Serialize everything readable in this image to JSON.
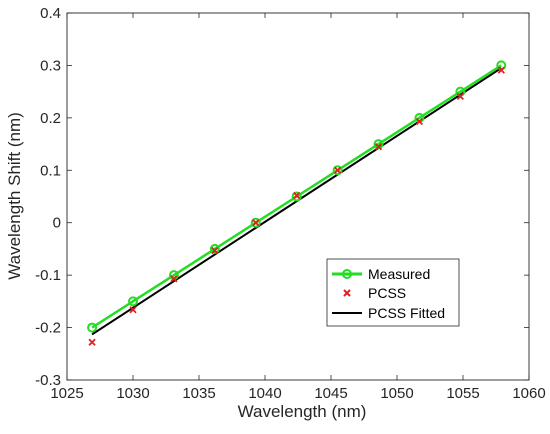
{
  "chart_data": {
    "type": "line",
    "xlabel": "Wavelength (nm)",
    "ylabel": "Wavelength Shift (nm)",
    "xlim": [
      1025,
      1060
    ],
    "ylim": [
      -0.3,
      0.4
    ],
    "xticks": [
      1025,
      1030,
      1035,
      1040,
      1045,
      1050,
      1055,
      1060
    ],
    "yticks": [
      -0.3,
      -0.2,
      -0.1,
      0,
      0.1,
      0.2,
      0.3,
      0.4
    ],
    "xtick_labels": [
      "1025",
      "1030",
      "1035",
      "1040",
      "1045",
      "1050",
      "1055",
      "1060"
    ],
    "ytick_labels": [
      "-0.3",
      "-0.2",
      "-0.1",
      "0",
      "0.1",
      "0.2",
      "0.3",
      "0.4"
    ],
    "grid": false,
    "legend_position": "lower-right",
    "series": [
      {
        "name": "Measured",
        "style": "line-circle-markers",
        "color": "#22dd22",
        "x": [
          1026.9,
          1030.0,
          1033.1,
          1036.2,
          1039.3,
          1042.4,
          1045.5,
          1048.6,
          1051.7,
          1054.8,
          1057.9
        ],
        "y": [
          -0.2,
          -0.15,
          -0.1,
          -0.05,
          0,
          0.05,
          0.1,
          0.15,
          0.2,
          0.25,
          0.3
        ]
      },
      {
        "name": "PCSS",
        "style": "x-markers",
        "color": "#e02020",
        "x": [
          1026.9,
          1030.0,
          1033.1,
          1036.2,
          1039.3,
          1042.4,
          1045.5,
          1048.6,
          1051.7,
          1054.8,
          1057.9
        ],
        "y": [
          -0.228,
          -0.166,
          -0.107,
          -0.053,
          0,
          0.052,
          0.1,
          0.145,
          0.193,
          0.241,
          0.291
        ]
      },
      {
        "name": "PCSS Fitted",
        "style": "line",
        "color": "#000000",
        "x": [
          1026.9,
          1057.9
        ],
        "y": [
          -0.213,
          0.295
        ]
      }
    ]
  }
}
